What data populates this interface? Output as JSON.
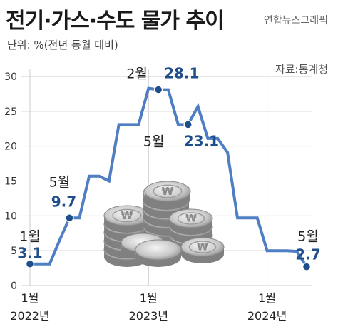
{
  "header": {
    "title": "전기·가스·수도 물가 추이",
    "credit": "연합뉴스그래픽",
    "unit": "단위: %(전년 동월 대비)",
    "source": "자료:통계청"
  },
  "colors": {
    "line": "#4f7fc2",
    "point": "#1f4f8a",
    "grid": "#cccccc"
  },
  "chart_data": {
    "type": "line",
    "title": "전기·가스·수도 물가 추이",
    "ylim": [
      0,
      30
    ],
    "yticks": [
      "0",
      "5",
      "10",
      "15",
      "20",
      "25",
      "30"
    ],
    "grid": true,
    "x_labels": [
      {
        "index": 0,
        "month": "1월",
        "year": "2022년"
      },
      {
        "index": 12,
        "month": "1월",
        "year": "2023년"
      },
      {
        "index": 24,
        "month": "1월",
        "year": "2024년"
      }
    ],
    "series": [
      {
        "x": [
          "2022-01",
          "2022-02",
          "2022-03",
          "2022-04",
          "2022-05",
          "2022-06",
          "2022-07",
          "2022-08",
          "2022-09",
          "2022-10",
          "2022-11",
          "2022-12",
          "2023-01",
          "2023-02",
          "2023-03",
          "2023-04",
          "2023-05",
          "2023-06",
          "2023-07",
          "2023-08",
          "2023-09",
          "2023-10",
          "2023-11",
          "2023-12",
          "2024-01",
          "2024-02",
          "2024-03",
          "2024-04",
          "2024-05"
        ],
        "values": [
          3.1,
          3.1,
          3.1,
          6.5,
          9.7,
          9.7,
          15.7,
          15.7,
          15.0,
          23.1,
          23.1,
          23.1,
          28.3,
          28.1,
          28.1,
          23.1,
          23.1,
          25.7,
          21.1,
          21.1,
          19.1,
          9.7,
          9.7,
          9.7,
          5.0,
          5.0,
          5.0,
          4.9,
          2.7
        ]
      }
    ],
    "annotations": [
      {
        "index": 0,
        "month": "1월",
        "value": "3.1"
      },
      {
        "index": 4,
        "month": "5월",
        "value": "9.7"
      },
      {
        "index": 13,
        "month": "2월",
        "value": "28.1"
      },
      {
        "index": 16,
        "month": "5월",
        "value": "23.1"
      },
      {
        "index": 28,
        "month": "5월",
        "value": "2.7"
      }
    ]
  }
}
